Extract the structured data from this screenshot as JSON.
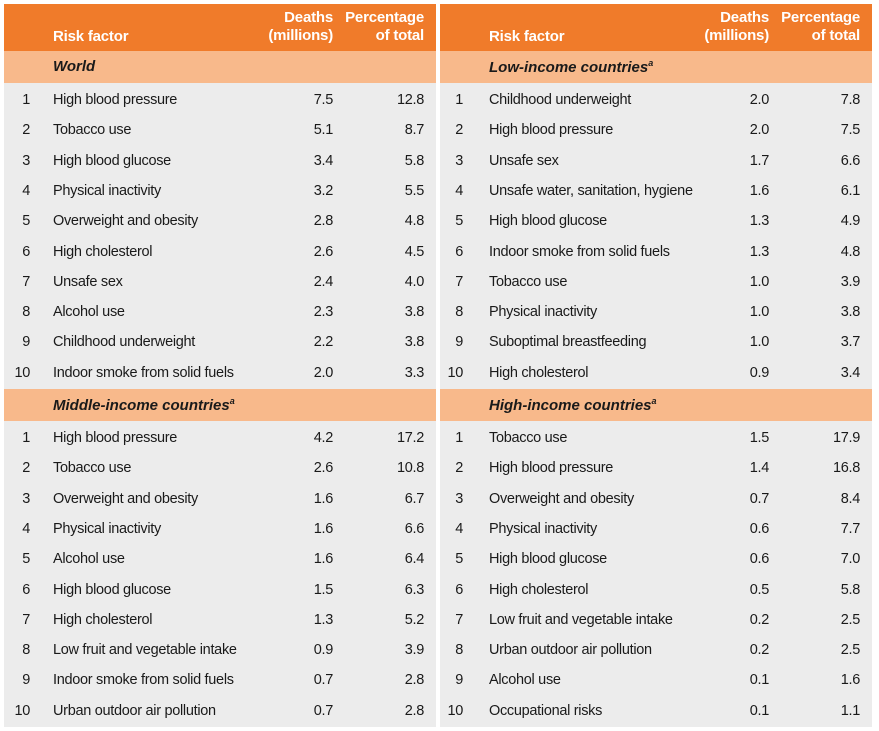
{
  "header": {
    "risk_factor": "Risk factor",
    "deaths_line1": "Deaths",
    "deaths_line2": "(millions)",
    "pct_line1": "Percentage",
    "pct_line2": "of total"
  },
  "colors": {
    "header": "#f07b2a",
    "section": "#f8b98b",
    "body": "#ececec"
  },
  "left": {
    "sections": [
      {
        "title": "World",
        "sup": "",
        "rows": [
          {
            "rank": "1",
            "name": "High blood pressure",
            "deaths": "7.5",
            "pct": "12.8"
          },
          {
            "rank": "2",
            "name": "Tobacco use",
            "deaths": "5.1",
            "pct": "8.7"
          },
          {
            "rank": "3",
            "name": "High blood glucose",
            "deaths": "3.4",
            "pct": "5.8"
          },
          {
            "rank": "4",
            "name": "Physical inactivity",
            "deaths": "3.2",
            "pct": "5.5"
          },
          {
            "rank": "5",
            "name": "Overweight and obesity",
            "deaths": "2.8",
            "pct": "4.8"
          },
          {
            "rank": "6",
            "name": "High cholesterol",
            "deaths": "2.6",
            "pct": "4.5"
          },
          {
            "rank": "7",
            "name": "Unsafe sex",
            "deaths": "2.4",
            "pct": "4.0"
          },
          {
            "rank": "8",
            "name": "Alcohol use",
            "deaths": "2.3",
            "pct": "3.8"
          },
          {
            "rank": "9",
            "name": "Childhood underweight",
            "deaths": "2.2",
            "pct": "3.8"
          },
          {
            "rank": "10",
            "name": "Indoor smoke from solid fuels",
            "deaths": "2.0",
            "pct": "3.3"
          }
        ]
      },
      {
        "title": "Middle-income countries",
        "sup": "a",
        "rows": [
          {
            "rank": "1",
            "name": "High blood pressure",
            "deaths": "4.2",
            "pct": "17.2"
          },
          {
            "rank": "2",
            "name": "Tobacco use",
            "deaths": "2.6",
            "pct": "10.8"
          },
          {
            "rank": "3",
            "name": "Overweight and obesity",
            "deaths": "1.6",
            "pct": "6.7"
          },
          {
            "rank": "4",
            "name": "Physical inactivity",
            "deaths": "1.6",
            "pct": "6.6"
          },
          {
            "rank": "5",
            "name": "Alcohol use",
            "deaths": "1.6",
            "pct": "6.4"
          },
          {
            "rank": "6",
            "name": "High blood glucose",
            "deaths": "1.5",
            "pct": "6.3"
          },
          {
            "rank": "7",
            "name": "High cholesterol",
            "deaths": "1.3",
            "pct": "5.2"
          },
          {
            "rank": "8",
            "name": "Low fruit and vegetable intake",
            "deaths": "0.9",
            "pct": "3.9"
          },
          {
            "rank": "9",
            "name": "Indoor smoke from solid fuels",
            "deaths": "0.7",
            "pct": "2.8"
          },
          {
            "rank": "10",
            "name": "Urban outdoor air pollution",
            "deaths": "0.7",
            "pct": "2.8"
          }
        ]
      }
    ]
  },
  "right": {
    "sections": [
      {
        "title": "Low-income countries",
        "sup": "a",
        "rows": [
          {
            "rank": "1",
            "name": "Childhood underweight",
            "deaths": "2.0",
            "pct": "7.8"
          },
          {
            "rank": "2",
            "name": "High blood pressure",
            "deaths": "2.0",
            "pct": "7.5"
          },
          {
            "rank": "3",
            "name": "Unsafe sex",
            "deaths": "1.7",
            "pct": "6.6"
          },
          {
            "rank": "4",
            "name": "Unsafe water, sanitation, hygiene",
            "deaths": "1.6",
            "pct": "6.1"
          },
          {
            "rank": "5",
            "name": "High blood glucose",
            "deaths": "1.3",
            "pct": "4.9"
          },
          {
            "rank": "6",
            "name": "Indoor smoke from solid fuels",
            "deaths": "1.3",
            "pct": "4.8"
          },
          {
            "rank": "7",
            "name": "Tobacco use",
            "deaths": "1.0",
            "pct": "3.9"
          },
          {
            "rank": "8",
            "name": "Physical inactivity",
            "deaths": "1.0",
            "pct": "3.8"
          },
          {
            "rank": "9",
            "name": "Suboptimal breastfeeding",
            "deaths": "1.0",
            "pct": "3.7"
          },
          {
            "rank": "10",
            "name": "High cholesterol",
            "deaths": "0.9",
            "pct": "3.4"
          }
        ]
      },
      {
        "title": "High-income countries",
        "sup": "a",
        "rows": [
          {
            "rank": "1",
            "name": "Tobacco use",
            "deaths": "1.5",
            "pct": "17.9"
          },
          {
            "rank": "2",
            "name": "High blood pressure",
            "deaths": "1.4",
            "pct": "16.8"
          },
          {
            "rank": "3",
            "name": "Overweight and obesity",
            "deaths": "0.7",
            "pct": "8.4"
          },
          {
            "rank": "4",
            "name": "Physical inactivity",
            "deaths": "0.6",
            "pct": "7.7"
          },
          {
            "rank": "5",
            "name": "High blood glucose",
            "deaths": "0.6",
            "pct": "7.0"
          },
          {
            "rank": "6",
            "name": "High cholesterol",
            "deaths": "0.5",
            "pct": "5.8"
          },
          {
            "rank": "7",
            "name": "Low fruit and vegetable intake",
            "deaths": "0.2",
            "pct": "2.5"
          },
          {
            "rank": "8",
            "name": "Urban outdoor air pollution",
            "deaths": "0.2",
            "pct": "2.5"
          },
          {
            "rank": "9",
            "name": "Alcohol use",
            "deaths": "0.1",
            "pct": "1.6"
          },
          {
            "rank": "10",
            "name": "Occupational risks",
            "deaths": "0.1",
            "pct": "1.1"
          }
        ]
      }
    ]
  }
}
